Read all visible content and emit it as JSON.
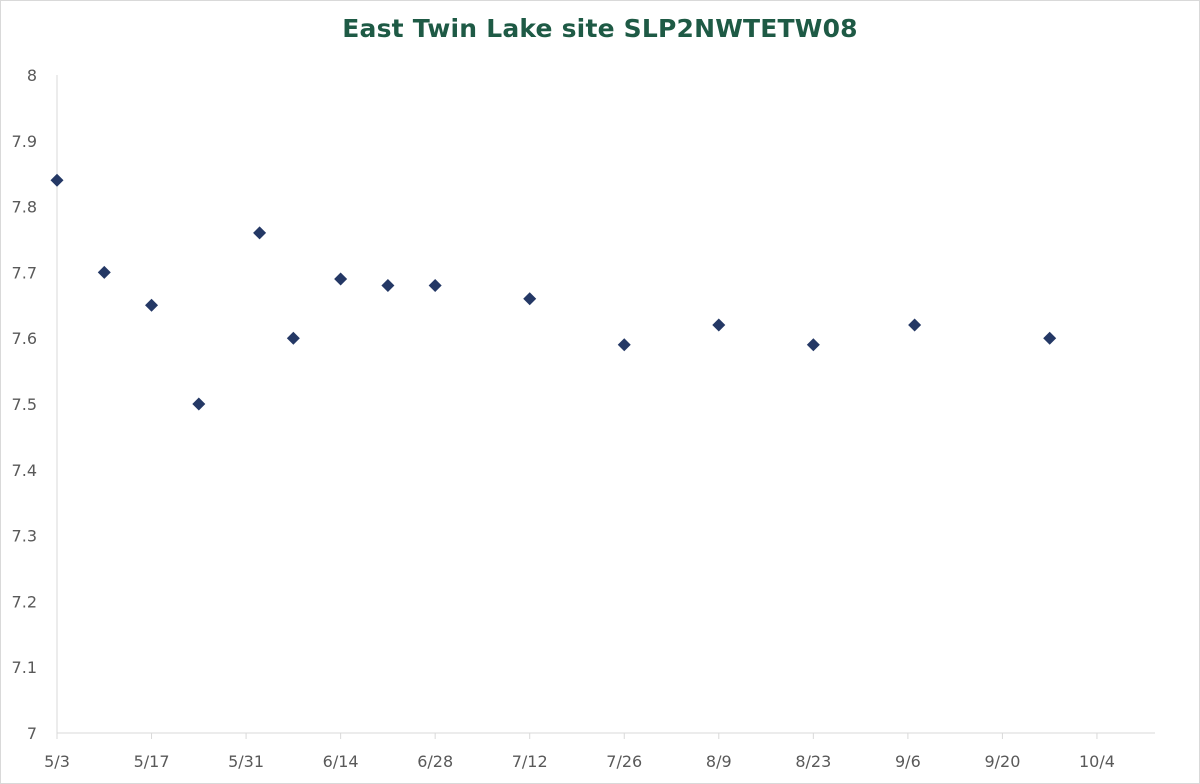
{
  "chart_data": {
    "type": "scatter",
    "title": "East Twin Lake site SLP2NWTETW08",
    "xlabel": "",
    "ylabel": "",
    "ylim": [
      7,
      8
    ],
    "y_ticks": [
      "7",
      "7.1",
      "7.2",
      "7.3",
      "7.4",
      "7.5",
      "7.6",
      "7.7",
      "7.8",
      "7.9",
      "8"
    ],
    "x_ticks": [
      "5/3",
      "5/17",
      "5/31",
      "6/14",
      "6/28",
      "7/12",
      "7/26",
      "8/9",
      "8/23",
      "9/6",
      "9/20",
      "10/4"
    ],
    "grid": false,
    "legend": "none",
    "series": [
      {
        "marker": "diamond",
        "color": "#243865",
        "x": [
          "5/3",
          "5/10",
          "5/17",
          "5/24",
          "6/2",
          "6/7",
          "6/14",
          "6/21",
          "6/28",
          "7/12",
          "7/26",
          "8/9",
          "8/23",
          "9/7",
          "9/27"
        ],
        "values": [
          7.84,
          7.7,
          7.65,
          7.5,
          7.76,
          7.6,
          7.69,
          7.68,
          7.68,
          7.66,
          7.59,
          7.62,
          7.59,
          7.62,
          7.6
        ]
      }
    ]
  }
}
